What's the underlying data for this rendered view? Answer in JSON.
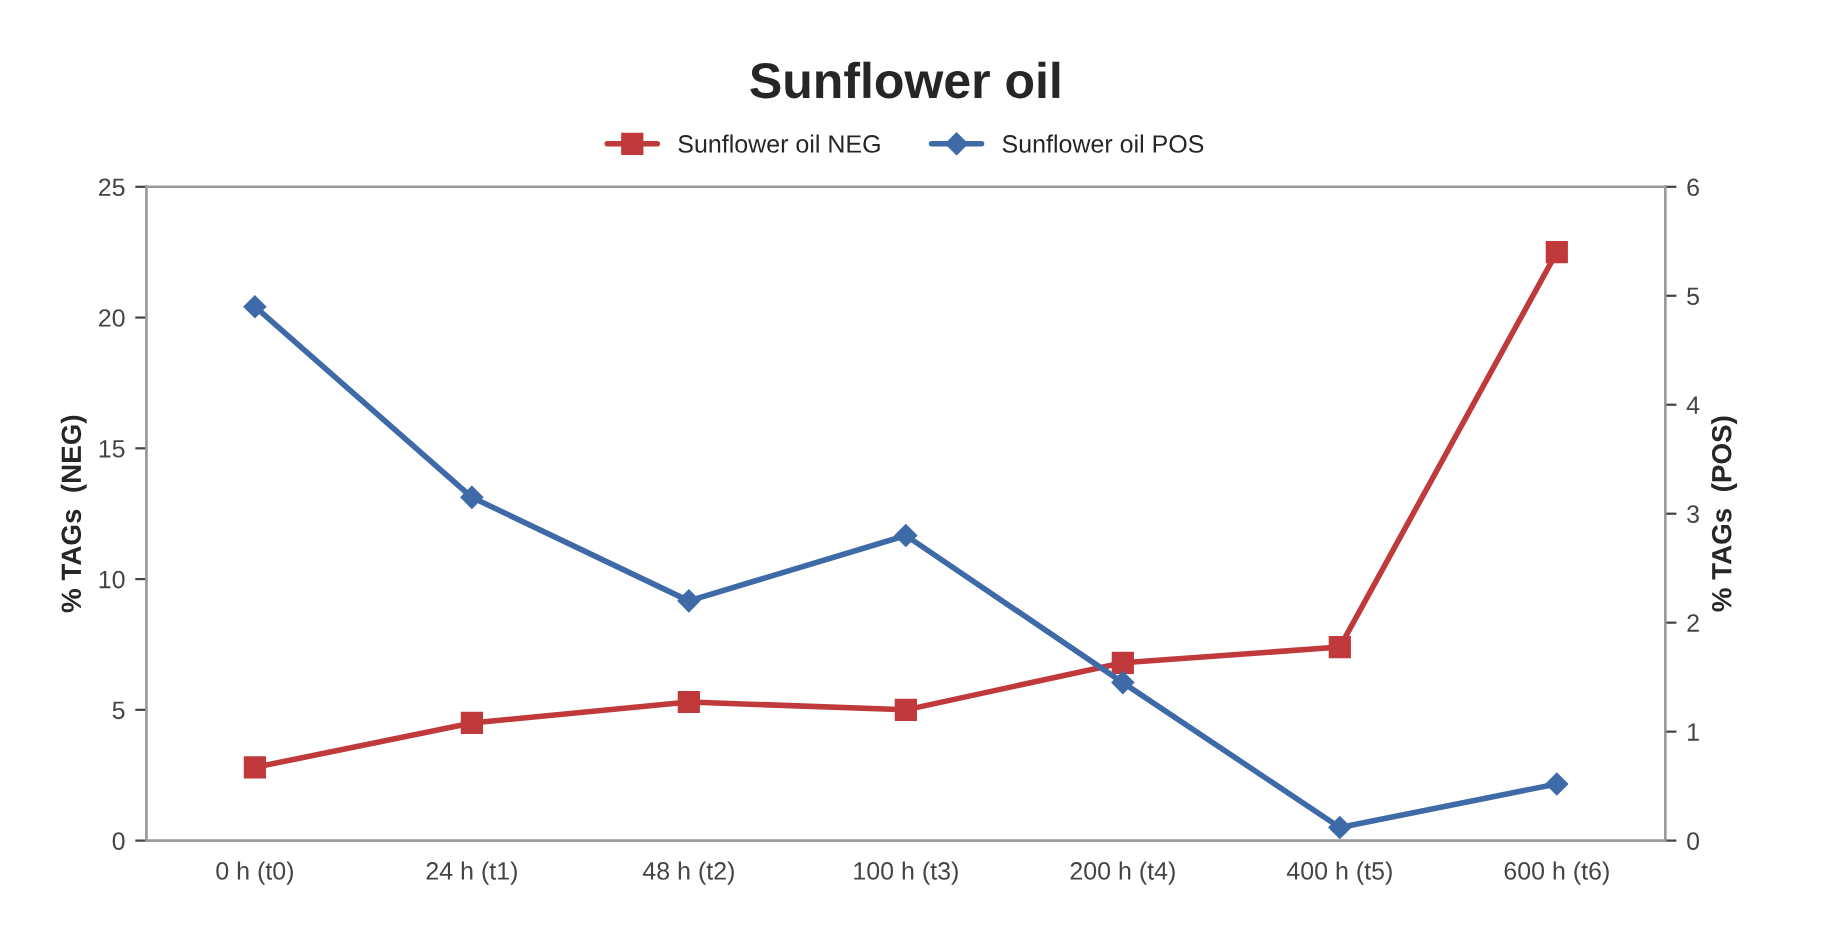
{
  "chart_data": {
    "type": "line",
    "title": "Sunflower oil",
    "categories": [
      "0 h (t0)",
      "24 h (t1)",
      "48 h (t2)",
      "100 h (t3)",
      "200 h (t4)",
      "400 h (t5)",
      "600 h (t6)"
    ],
    "ylabel": "% TAGs  (NEG)",
    "y2label": "% TAGs  (POS)",
    "ylim": [
      0,
      25
    ],
    "yticks": [
      0,
      5,
      10,
      15,
      20,
      25
    ],
    "y2lim": [
      0,
      6
    ],
    "y2ticks": [
      0,
      1,
      2,
      3,
      4,
      5,
      6
    ],
    "series": [
      {
        "name": "Sunflower oil NEG",
        "color": "#c0393b",
        "marker": "square",
        "values": [
          2.8,
          4.5,
          5.3,
          5.0,
          6.8,
          7.4,
          22.5
        ]
      },
      {
        "name": "Sunflower oil POS",
        "color": "#3f6aa8",
        "marker": "diamond",
        "axis": "y2",
        "values": [
          4.9,
          3.15,
          2.2,
          2.8,
          1.45,
          0.12,
          0.52
        ]
      }
    ],
    "grid": false,
    "legend": "top",
    "line_style": "solid"
  }
}
